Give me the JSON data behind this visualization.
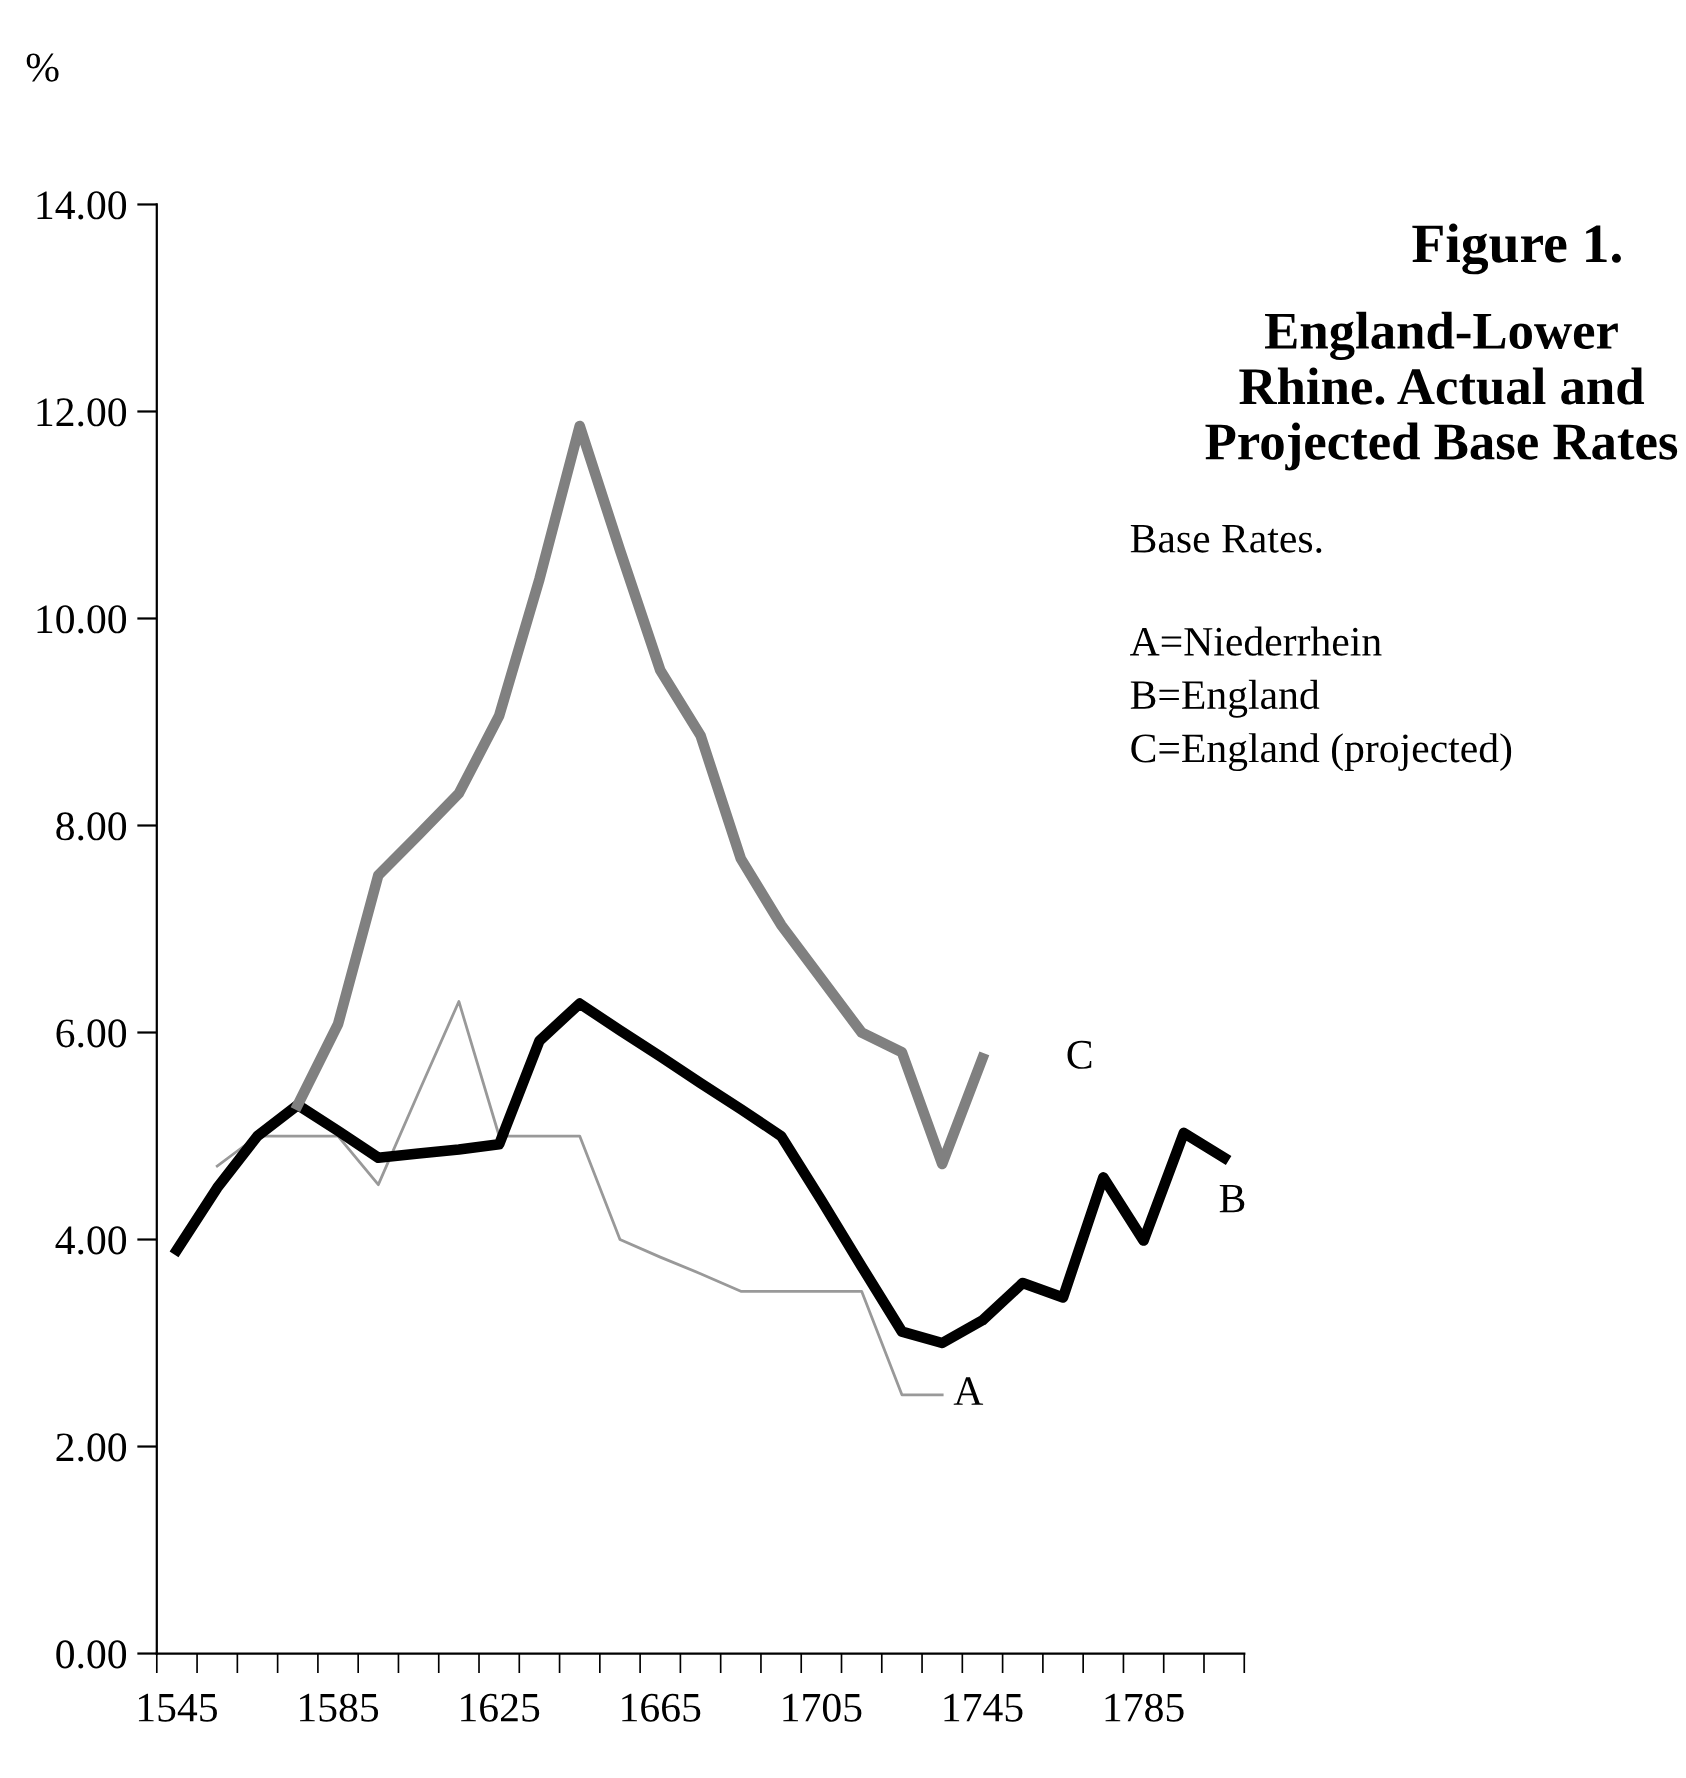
{
  "chart_data": {
    "type": "line",
    "title": "Figure 1.",
    "subtitle": "England-Lower Rhine. Actual and Projected Base Rates",
    "ylabel": "%",
    "annotations": [
      "Base Rates.",
      "A=Niederrhein",
      "B=England",
      "C=England (projected)"
    ],
    "categories": [
      "1545",
      null,
      null,
      null,
      "1585",
      null,
      null,
      null,
      "1625",
      null,
      null,
      null,
      "1665",
      null,
      null,
      null,
      "1705",
      null,
      null,
      null,
      "1745",
      null,
      null,
      null,
      "1785",
      null,
      null
    ],
    "series": [
      {
        "name": "A",
        "color": "#999999",
        "values": [
          null,
          4.71,
          5.0,
          5.0,
          5.0,
          4.53,
          5.42,
          6.3,
          5.0,
          5.0,
          5.0,
          4.0,
          3.83,
          3.67,
          3.5,
          3.5,
          3.5,
          3.5,
          2.5,
          2.5,
          null,
          null,
          null,
          null,
          null,
          null,
          null
        ]
      },
      {
        "name": "B",
        "color": "#000000",
        "values": [
          3.9,
          4.5,
          5.0,
          5.3,
          5.05,
          4.79,
          4.83,
          4.87,
          4.92,
          5.92,
          6.28,
          6.02,
          5.77,
          5.51,
          5.26,
          5.0,
          4.38,
          3.74,
          3.11,
          3.0,
          3.22,
          3.58,
          3.44,
          4.6,
          3.99,
          5.03,
          4.79
        ]
      },
      {
        "name": "C",
        "color": "#808080",
        "values": [
          null,
          null,
          null,
          5.3,
          6.08,
          7.52,
          7.91,
          8.31,
          9.06,
          10.38,
          11.86,
          10.66,
          9.5,
          8.87,
          7.68,
          7.04,
          6.52,
          6.0,
          5.81,
          4.73,
          5.75,
          null,
          null,
          null,
          null,
          null,
          null
        ]
      }
    ],
    "ylim": [
      0,
      14
    ],
    "yticks": [
      {
        "value": 0,
        "label": "0.00"
      },
      {
        "value": 2,
        "label": "2.00"
      },
      {
        "value": 4,
        "label": "4.00"
      },
      {
        "value": 6,
        "label": "6.00"
      },
      {
        "value": 8,
        "label": "8.00"
      },
      {
        "value": 10,
        "label": "10.00"
      },
      {
        "value": 12,
        "label": "12.00"
      },
      {
        "value": 14,
        "label": "14.00"
      }
    ],
    "grid": false,
    "legend": false,
    "marker": "none",
    "line_style": "solid"
  }
}
